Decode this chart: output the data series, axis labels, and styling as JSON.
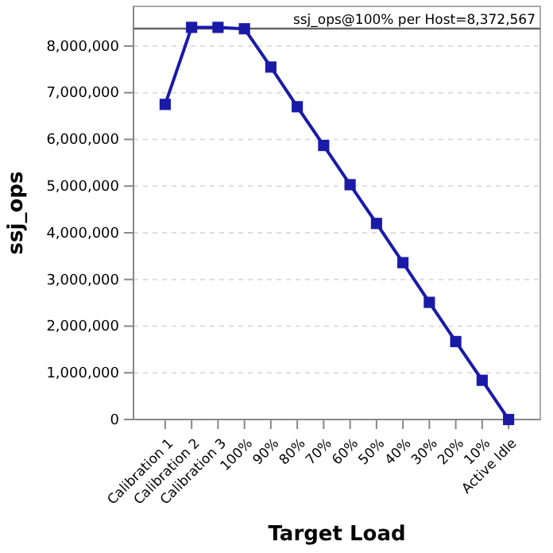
{
  "chart_data": {
    "type": "line",
    "xlabel": "Target Load",
    "ylabel": "ssj_ops",
    "categories": [
      "Calibration 1",
      "Calibration 2",
      "Calibration 3",
      "100%",
      "90%",
      "80%",
      "70%",
      "60%",
      "50%",
      "40%",
      "30%",
      "20%",
      "10%",
      "Active Idle"
    ],
    "series": [
      {
        "color": "#1a1aa8",
        "values": [
          6750000,
          8400000,
          8400000,
          8370000,
          7550000,
          6700000,
          5870000,
          5030000,
          4200000,
          3360000,
          2510000,
          1670000,
          840000,
          0
        ]
      }
    ],
    "ylim": [
      0,
      8850000
    ],
    "yticks": [
      {
        "value": 0,
        "label": "0"
      },
      {
        "value": 1000000,
        "label": "1,000,000"
      },
      {
        "value": 2000000,
        "label": "2,000,000"
      },
      {
        "value": 3000000,
        "label": "3,000,000"
      },
      {
        "value": 4000000,
        "label": "4,000,000"
      },
      {
        "value": 5000000,
        "label": "5,000,000"
      },
      {
        "value": 6000000,
        "label": "6,000,000"
      },
      {
        "value": 7000000,
        "label": "7,000,000"
      },
      {
        "value": 8000000,
        "label": "8,000,000"
      }
    ],
    "ref_lines": [
      {
        "axis": "y",
        "value": 8372567,
        "label": "ssj_ops@100% per Host=8,372,567",
        "color": "#666666"
      }
    ],
    "grid": "y",
    "marker": "square",
    "line_style": "solid"
  }
}
